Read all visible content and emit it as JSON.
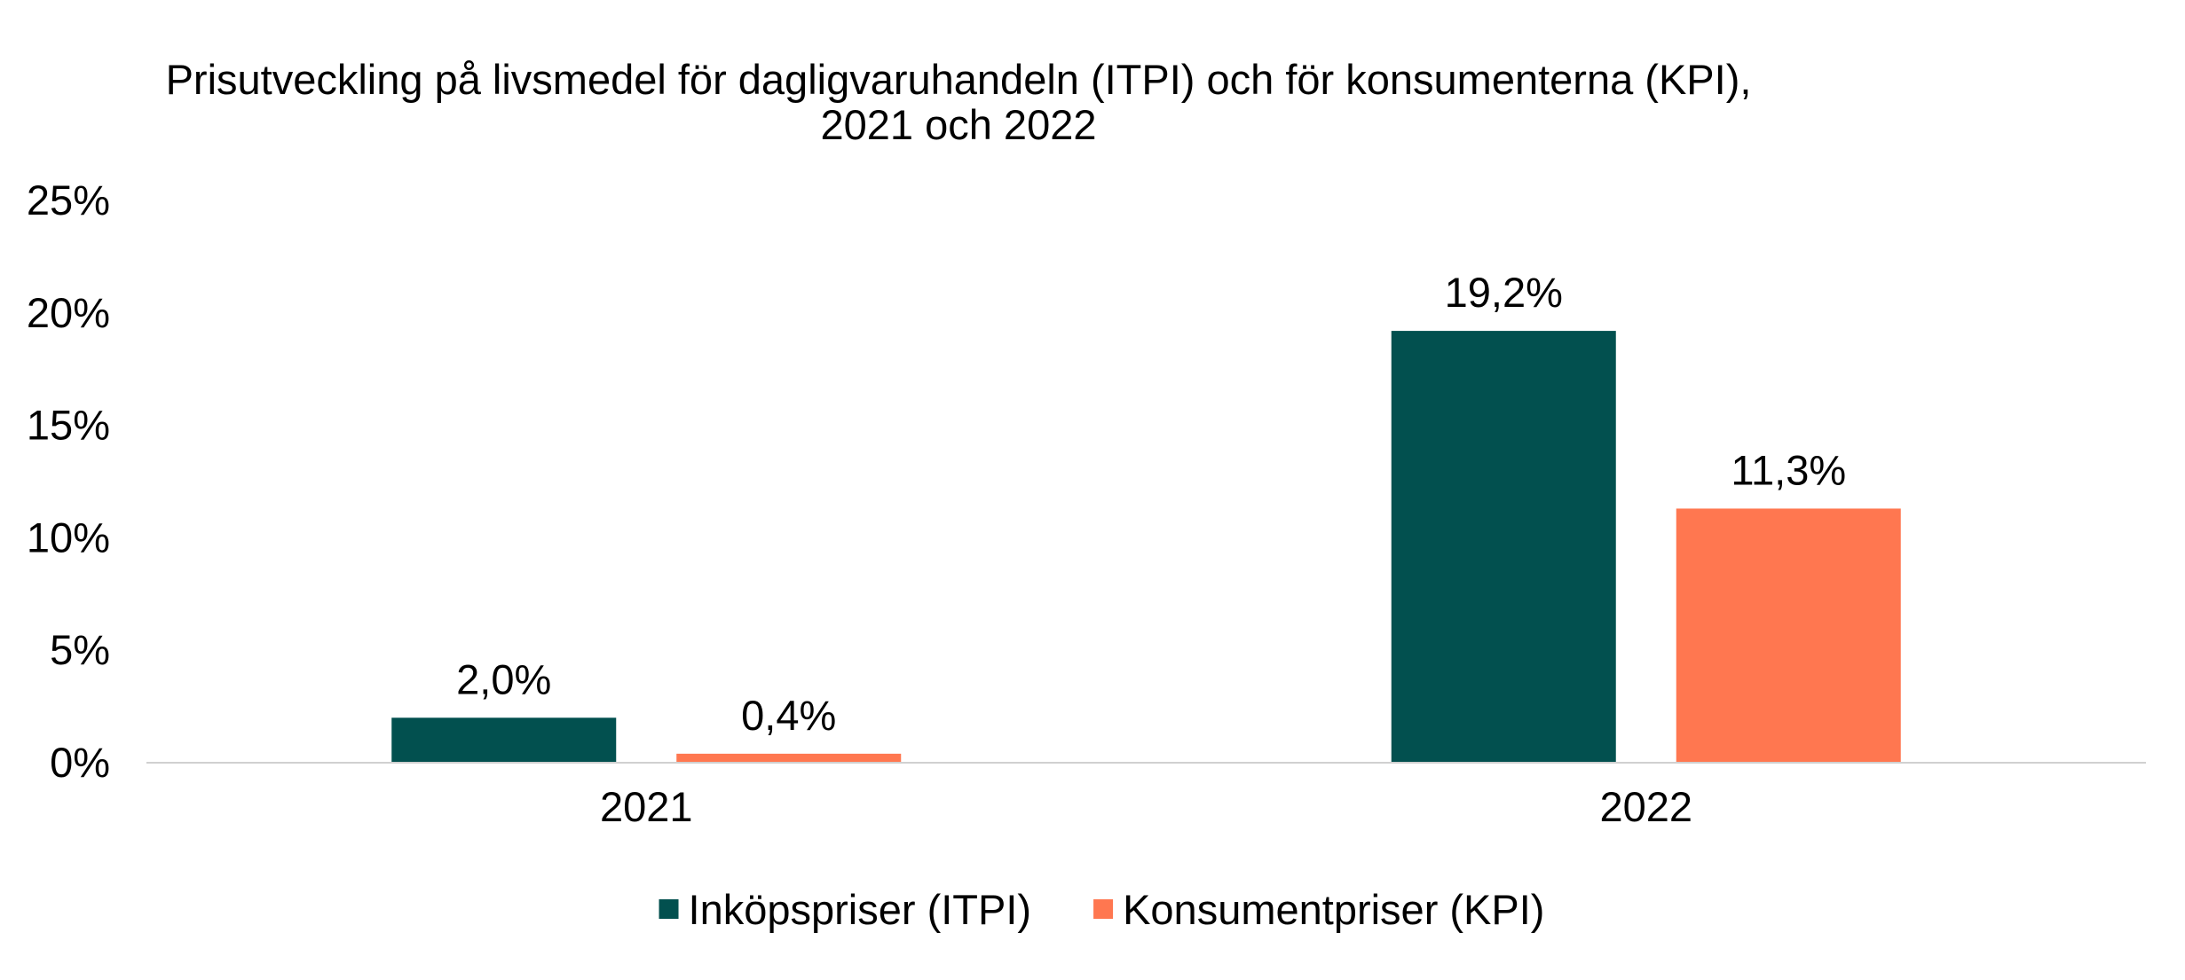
{
  "chart_data": {
    "type": "bar",
    "title": "Prisutveckling på livsmedel för dagligvaruhandeln (ITPI) och för konsumenterna (KPI),",
    "subtitle": "2021 och 2022",
    "categories": [
      "2021",
      "2022"
    ],
    "series": [
      {
        "name": "Inköpspriser (ITPI)",
        "color": "#02504F",
        "values": [
          2.0,
          19.2
        ],
        "labels": [
          "2,0%",
          "19,2%"
        ]
      },
      {
        "name": "Konsumentpriser (KPI)",
        "color": "#FF7750",
        "values": [
          0.4,
          11.3
        ],
        "labels": [
          "0,4%",
          "11,3%"
        ]
      }
    ],
    "ylim": [
      0,
      25
    ],
    "yticks": [
      0,
      5,
      10,
      15,
      20,
      25
    ],
    "ytick_labels": [
      "0%",
      "5%",
      "10%",
      "15%",
      "20%",
      "25%"
    ],
    "xlabel": "",
    "ylabel": "",
    "grid": false,
    "legend_position": "bottom",
    "axis_color": "#D0D0D0"
  }
}
